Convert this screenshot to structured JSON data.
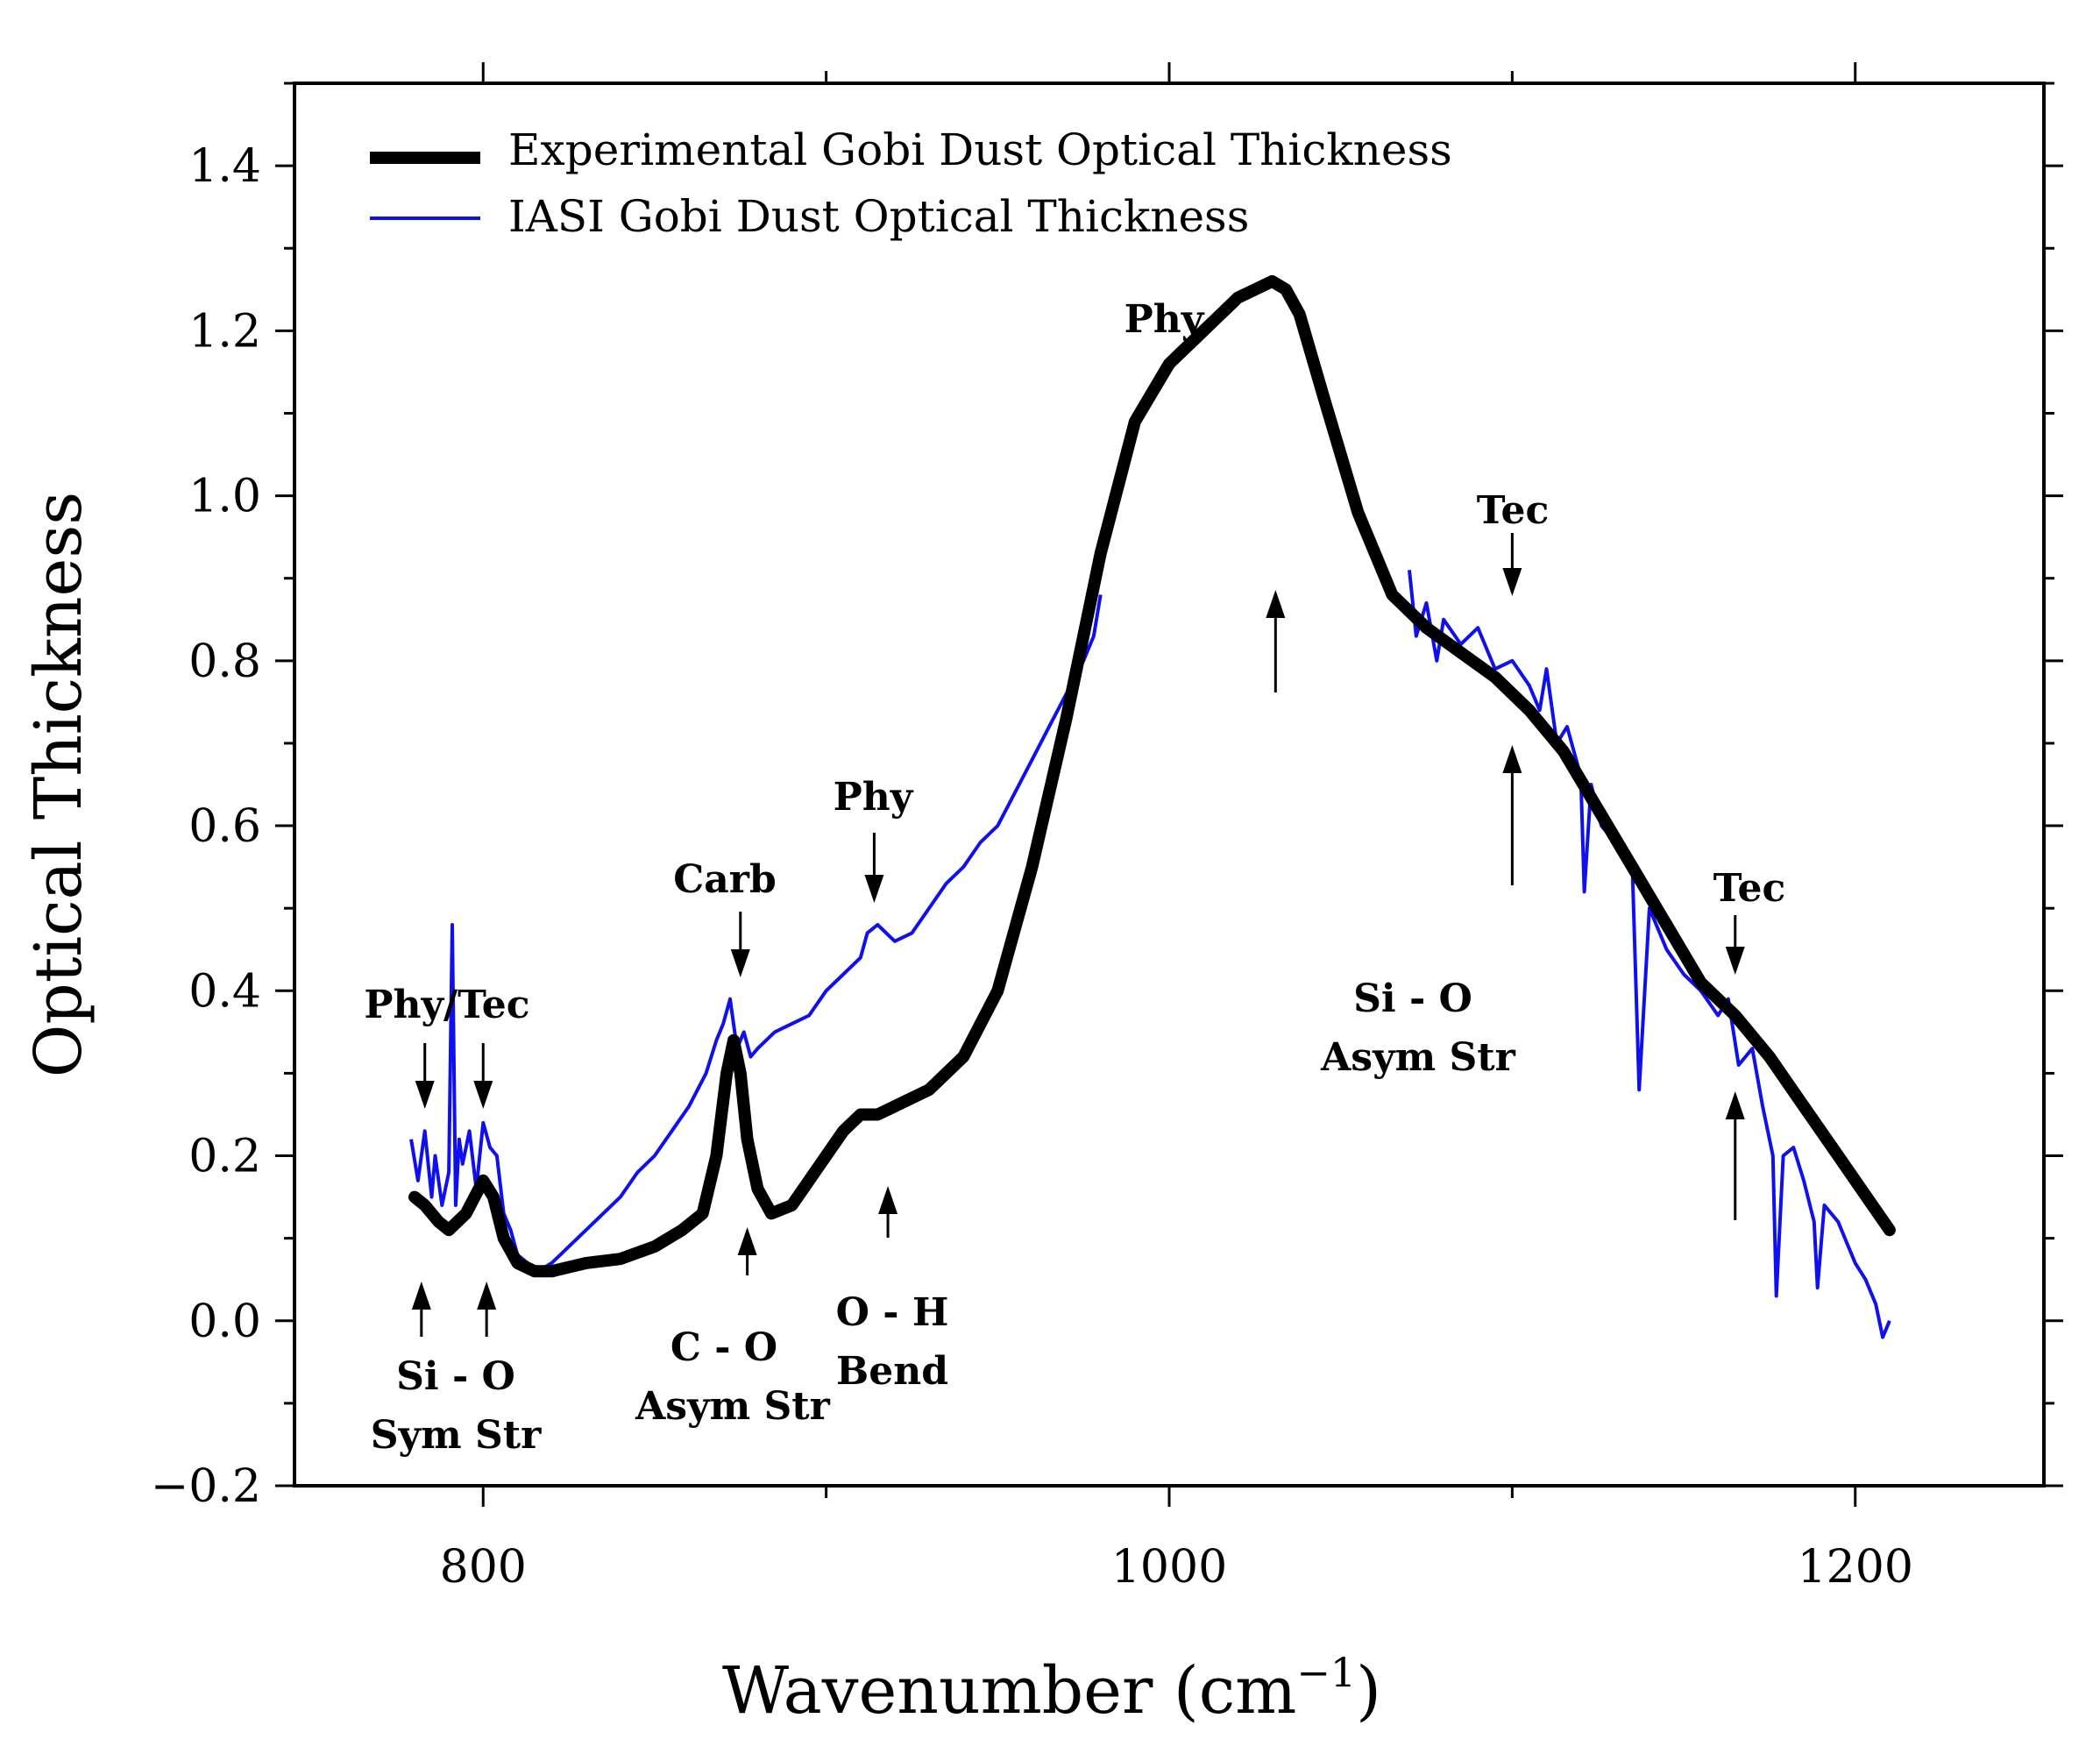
{
  "chart_data": {
    "type": "line",
    "title": "",
    "xlabel": "Wavenumber (cm",
    "xlabel_sup": "−1",
    "xlabel_close": ")",
    "ylabel": "Optical Thickness",
    "xlim": [
      745,
      1255
    ],
    "ylim": [
      -0.2,
      1.5
    ],
    "x_ticks": [
      800,
      1000,
      1200
    ],
    "x_tick_labels": [
      "800",
      "1000",
      "1200"
    ],
    "x_minor_ticks": [
      900,
      1100
    ],
    "y_ticks": [
      -0.2,
      0.0,
      0.2,
      0.4,
      0.6,
      0.8,
      1.0,
      1.2,
      1.4
    ],
    "y_tick_labels": [
      "−0.2",
      "0.0",
      "0.2",
      "0.4",
      "0.6",
      "0.8",
      "1.0",
      "1.2",
      "1.4"
    ],
    "grid": false,
    "legend_position": "top-left",
    "series": [
      {
        "name": "Experimental Gobi Dust Optical Thickness",
        "color": "#000000",
        "style": "thick",
        "x": [
          780,
          783,
          787,
          790,
          795,
          800,
          803,
          806,
          810,
          815,
          820,
          830,
          840,
          850,
          858,
          864,
          868,
          871,
          873,
          875,
          877,
          880,
          884,
          890,
          895,
          900,
          905,
          910,
          915,
          920,
          930,
          940,
          950,
          960,
          970,
          980,
          990,
          1000,
          1010,
          1020,
          1030,
          1034,
          1038,
          1045,
          1055,
          1065,
          1075,
          1085,
          1095,
          1105,
          1115,
          1125,
          1135,
          1145,
          1155,
          1165,
          1175,
          1185,
          1195,
          1205,
          1210
        ],
        "y": [
          0.15,
          0.14,
          0.12,
          0.11,
          0.13,
          0.17,
          0.15,
          0.1,
          0.07,
          0.06,
          0.06,
          0.07,
          0.075,
          0.09,
          0.11,
          0.13,
          0.2,
          0.3,
          0.34,
          0.3,
          0.22,
          0.16,
          0.13,
          0.14,
          0.17,
          0.2,
          0.23,
          0.25,
          0.25,
          0.26,
          0.28,
          0.32,
          0.4,
          0.55,
          0.73,
          0.93,
          1.09,
          1.16,
          1.2,
          1.24,
          1.26,
          1.25,
          1.22,
          1.12,
          0.98,
          0.88,
          0.84,
          0.81,
          0.78,
          0.74,
          0.69,
          0.62,
          0.55,
          0.48,
          0.41,
          0.37,
          0.32,
          0.26,
          0.2,
          0.14,
          0.11
        ]
      },
      {
        "name": "IASI Gobi Dust Optical Thickness",
        "color": "#1010ee",
        "style": "thin",
        "segments": [
          {
            "x": [
              779,
              781,
              783,
              785,
              786,
              788,
              790,
              791,
              792,
              793,
              794,
              796,
              798,
              800,
              802,
              804,
              806,
              808,
              810,
              813,
              816,
              820,
              825,
              830,
              835,
              840,
              845,
              850,
              855,
              860,
              865,
              868,
              870,
              872,
              874,
              876,
              878,
              880,
              885,
              890,
              895,
              900,
              905,
              910,
              912,
              915,
              920,
              925,
              930,
              935,
              940,
              945,
              950,
              955,
              960,
              965,
              970,
              975,
              978,
              980
            ],
            "y": [
              0.22,
              0.17,
              0.23,
              0.15,
              0.2,
              0.14,
              0.18,
              0.48,
              0.14,
              0.22,
              0.19,
              0.23,
              0.16,
              0.24,
              0.21,
              0.2,
              0.13,
              0.11,
              0.08,
              0.07,
              0.06,
              0.07,
              0.09,
              0.11,
              0.13,
              0.15,
              0.18,
              0.2,
              0.23,
              0.26,
              0.3,
              0.34,
              0.36,
              0.39,
              0.33,
              0.35,
              0.32,
              0.33,
              0.35,
              0.36,
              0.37,
              0.4,
              0.42,
              0.44,
              0.47,
              0.48,
              0.46,
              0.47,
              0.5,
              0.53,
              0.55,
              0.58,
              0.6,
              0.64,
              0.68,
              0.72,
              0.76,
              0.8,
              0.83,
              0.88
            ]
          },
          {
            "x": [
              1070,
              1072,
              1075,
              1078,
              1080,
              1085,
              1090,
              1095,
              1100,
              1105,
              1108,
              1110,
              1113,
              1116,
              1120,
              1121,
              1123,
              1126,
              1130,
              1135,
              1137,
              1140,
              1145,
              1150,
              1155,
              1160,
              1163,
              1166,
              1170,
              1173,
              1176,
              1177,
              1179,
              1182,
              1185,
              1188,
              1189,
              1191,
              1195,
              1198,
              1200,
              1203,
              1206,
              1208,
              1210
            ],
            "y": [
              0.91,
              0.83,
              0.87,
              0.8,
              0.85,
              0.82,
              0.84,
              0.79,
              0.8,
              0.77,
              0.74,
              0.79,
              0.7,
              0.72,
              0.66,
              0.52,
              0.65,
              0.6,
              0.58,
              0.55,
              0.28,
              0.5,
              0.45,
              0.42,
              0.4,
              0.37,
              0.39,
              0.31,
              0.33,
              0.26,
              0.2,
              0.03,
              0.2,
              0.21,
              0.17,
              0.12,
              0.04,
              0.14,
              0.12,
              0.09,
              0.07,
              0.05,
              0.02,
              -0.02,
              0.0
            ]
          }
        ]
      }
    ],
    "annotations": {
      "labels": [
        {
          "id": "phytec",
          "text": "Phy/Tec"
        },
        {
          "id": "carb",
          "text": "Carb"
        },
        {
          "id": "phy1",
          "text": "Phy"
        },
        {
          "id": "phy2",
          "text": "Phy"
        },
        {
          "id": "tec1",
          "text": "Tec"
        },
        {
          "id": "tec2",
          "text": "Tec"
        },
        {
          "id": "sio1a",
          "text": "Si - O"
        },
        {
          "id": "sio1b",
          "text": "Sym Str"
        },
        {
          "id": "co1",
          "text": "C - O"
        },
        {
          "id": "co2",
          "text": "Asym Str"
        },
        {
          "id": "oh1",
          "text": "O - H"
        },
        {
          "id": "oh2",
          "text": "Bend"
        },
        {
          "id": "sio2a",
          "text": "Si - O"
        },
        {
          "id": "sio2b",
          "text": "Asym Str"
        }
      ],
      "down_arrows_at": [
        783,
        800,
        875,
        914,
        1100,
        1165
      ],
      "up_arrows_at": [
        782,
        801,
        877,
        918,
        1031,
        1100,
        1165
      ]
    }
  }
}
